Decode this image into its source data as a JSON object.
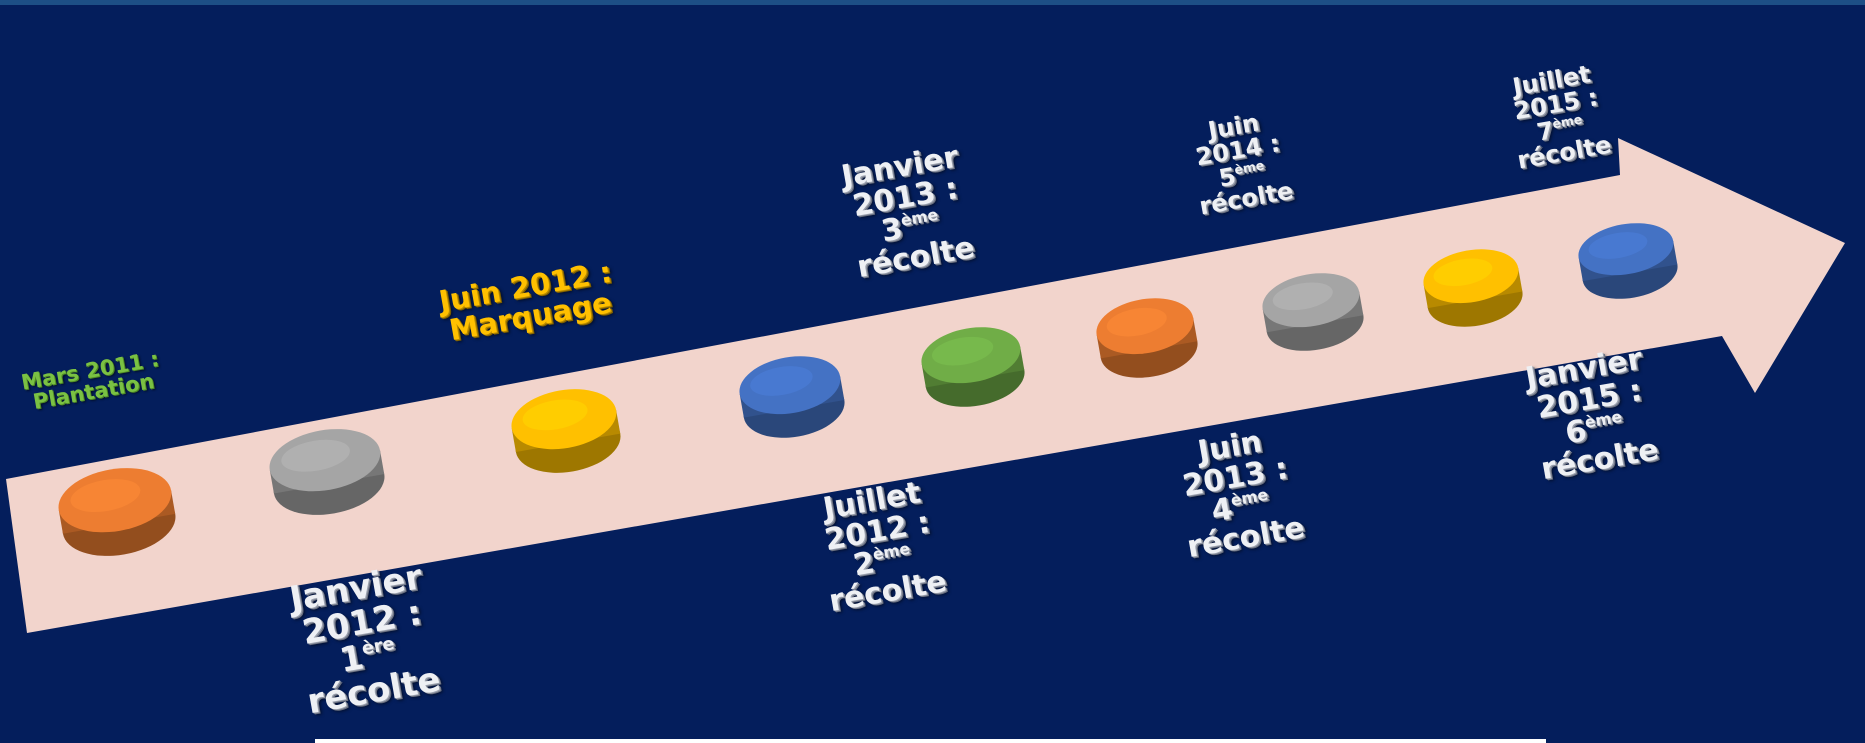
{
  "timeline": {
    "events": [
      {
        "id": "mars-2011",
        "lines": [
          "Mars 2011 :",
          "Plantation"
        ]
      },
      {
        "id": "janvier-2012",
        "lines": [
          "Janvier",
          "2012 :"
        ],
        "ordinal": "1",
        "suffix": "ère",
        "tail": "récolte"
      },
      {
        "id": "juin-2012",
        "lines": [
          "Juin 2012 :",
          "Marquage"
        ]
      },
      {
        "id": "juillet-2012",
        "lines": [
          "Juillet",
          "2012 :"
        ],
        "ordinal": "2",
        "suffix": "ème",
        "tail": "récolte"
      },
      {
        "id": "janvier-2013",
        "lines": [
          "Janvier",
          "2013 :"
        ],
        "ordinal": "3",
        "suffix": "ème",
        "tail": "récolte"
      },
      {
        "id": "juin-2013",
        "lines": [
          "Juin",
          "2013 :"
        ],
        "ordinal": "4",
        "suffix": "ème",
        "tail": "récolte"
      },
      {
        "id": "juin-2014",
        "lines": [
          "Juin",
          "2014 :"
        ],
        "ordinal": "5",
        "suffix": "ème",
        "tail": "récolte"
      },
      {
        "id": "janvier-2015",
        "lines": [
          "Janvier",
          "2015 :"
        ],
        "ordinal": "6",
        "suffix": "ème",
        "tail": "récolte"
      },
      {
        "id": "juillet-2015",
        "lines": [
          "Juillet",
          "2015 :"
        ],
        "ordinal": "7",
        "suffix": "ème",
        "tail": "récolte"
      }
    ],
    "milestones": [
      {
        "color": "orange"
      },
      {
        "color": "gray"
      },
      {
        "color": "yellow"
      },
      {
        "color": "blue"
      },
      {
        "color": "green"
      },
      {
        "color": "orange"
      },
      {
        "color": "gray"
      },
      {
        "color": "yellow"
      },
      {
        "color": "blue"
      }
    ]
  },
  "palette": {
    "background": "#041e5c",
    "arrow": "#f2d4cc",
    "orange": "#ed7d31",
    "gray": "#a5a5a5",
    "yellow": "#ffc000",
    "blue": "#4472c4",
    "green": "#70ad47",
    "label_green": "#7ac143",
    "label_yellow": "#ffc000",
    "label_white": "#eef0f4"
  }
}
